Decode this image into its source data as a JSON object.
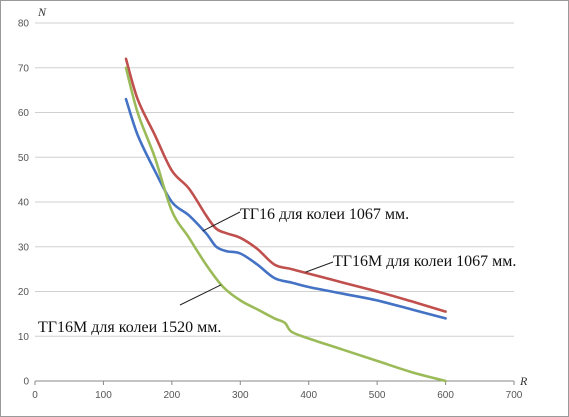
{
  "chart_data": {
    "type": "line",
    "title": "",
    "xlabel": "R",
    "ylabel": "N",
    "xlim": [
      0,
      700
    ],
    "ylim": [
      0,
      80
    ],
    "x_ticks": [
      "0",
      "100",
      "200",
      "300",
      "400",
      "500",
      "600",
      "700"
    ],
    "y_ticks": [
      "0",
      "10",
      "20",
      "30",
      "40",
      "50",
      "60",
      "70",
      "80"
    ],
    "grid": "horizontal",
    "legend": "none",
    "series": [
      {
        "name": "ТГ16 для колеи 1067 мм.",
        "color": "#4472c4",
        "x": [
          133,
          150,
          175,
          200,
          225,
          250,
          265,
          280,
          300,
          325,
          350,
          375,
          400,
          450,
          500,
          550,
          600
        ],
        "y": [
          63,
          55,
          47,
          40,
          37,
          33,
          30,
          29,
          28.5,
          26,
          23,
          22,
          21,
          19.5,
          18,
          16,
          14
        ]
      },
      {
        "name": "ТГ16М для колеи 1067 мм.",
        "color": "#c0504d",
        "x": [
          133,
          150,
          175,
          200,
          225,
          250,
          265,
          280,
          300,
          325,
          350,
          375,
          400,
          450,
          500,
          550,
          600
        ],
        "y": [
          72,
          63,
          55,
          47,
          43,
          37,
          34,
          33,
          32,
          29.5,
          26,
          25,
          24,
          22,
          20,
          17.8,
          15.5
        ]
      },
      {
        "name": "ТГ16М для колеи 1520 мм.",
        "color": "#9bbb59",
        "x": [
          133,
          150,
          175,
          200,
          225,
          250,
          275,
          300,
          325,
          350,
          365,
          375,
          400,
          450,
          500,
          550,
          600
        ],
        "y": [
          70,
          60,
          50,
          38,
          32,
          26,
          21,
          18,
          16,
          14,
          13,
          11,
          9.5,
          7,
          4.5,
          2,
          0
        ]
      }
    ],
    "annotations": [
      {
        "text": "ТГ16 для колеи 1067 мм.",
        "series": 0
      },
      {
        "text": "ТГ16М для колеи 1067 мм.",
        "series": 1
      },
      {
        "text": "ТГ16М для колеи 1520 мм.",
        "series": 2
      }
    ]
  }
}
